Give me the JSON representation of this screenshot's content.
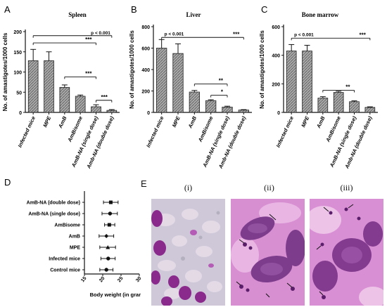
{
  "chart_data": [
    {
      "panel": "A",
      "type": "bar",
      "title": "Spleen",
      "ylabel": "No. of amastigotes/1000 cells",
      "xlabel": "",
      "ylim": [
        0,
        200
      ],
      "yticks": [
        0,
        50,
        100,
        150,
        200
      ],
      "categories": [
        "Infected mice",
        "MPE",
        "AmB",
        "AmBisome",
        "AmB-NA (single dose)",
        "Amb-NA (double dose)"
      ],
      "values": [
        128,
        128,
        62,
        40,
        14,
        5
      ],
      "errors": [
        28,
        22,
        6,
        3,
        5,
        2
      ],
      "annotations": [
        {
          "from": 0,
          "to": 5,
          "level": 190,
          "text": "p < 0.001"
        },
        {
          "from": 0,
          "to": 4,
          "level": 172,
          "text": "***"
        },
        {
          "from": 2,
          "to": 4,
          "level": 88,
          "text": "***"
        },
        {
          "from": 4,
          "to": 5,
          "level": 30,
          "text": "***"
        }
      ]
    },
    {
      "panel": "B",
      "type": "bar",
      "title": "Liver",
      "ylabel": "No. of amastigotes/1000 cells",
      "xlabel": "",
      "ylim": [
        0,
        800
      ],
      "yticks": [
        0,
        200,
        400,
        600,
        800
      ],
      "categories": [
        "Infected mice",
        "MPE",
        "AmB",
        "AmBisome",
        "AmB-NA (single dose)",
        "Amb-NA (double dose)"
      ],
      "values": [
        600,
        550,
        190,
        110,
        50,
        22
      ],
      "errors": [
        80,
        90,
        15,
        8,
        8,
        4
      ],
      "annotations": [
        {
          "from": 0,
          "to": 5,
          "level": 700,
          "text": "***",
          "note": "p < 0.001"
        },
        {
          "from": 2,
          "to": 4,
          "level": 265,
          "text": "**"
        },
        {
          "from": 3,
          "to": 4,
          "level": 160,
          "text": "*"
        }
      ]
    },
    {
      "panel": "C",
      "type": "bar",
      "title": "Bone marrow",
      "ylabel": "No. of amastigotes/1000 cells",
      "xlabel": "",
      "ylim": [
        0,
        600
      ],
      "yticks": [
        0,
        200,
        400,
        600
      ],
      "categories": [
        "Infected mice",
        "MPE",
        "AmB",
        "AmBisome",
        "AmB-NA (single dose)",
        "Amb-NA (double dose)"
      ],
      "values": [
        430,
        430,
        100,
        140,
        75,
        35
      ],
      "errors": [
        45,
        40,
        10,
        8,
        6,
        4
      ],
      "annotations": [
        {
          "from": 0,
          "to": 5,
          "level": 520,
          "text": "***",
          "note": "p < 0.001"
        },
        {
          "from": 2,
          "to": 4,
          "level": 155,
          "text": "**"
        }
      ]
    },
    {
      "panel": "D",
      "type": "scatter",
      "title": "",
      "xlabel": "Body weight (in gram)",
      "ylabel": "",
      "xlim": [
        15,
        30
      ],
      "xticks": [
        15,
        20,
        25,
        30
      ],
      "categories": [
        "AmB-NA (double dose)",
        "AmB-NA (single dose)",
        "AmBisome",
        "AmB",
        "MPE",
        "Infected mice",
        "Control mice"
      ],
      "means": [
        22.2,
        22.0,
        21.8,
        21.0,
        21.4,
        21.5,
        21.0
      ],
      "low": [
        20.2,
        19.8,
        20.5,
        19.0,
        19.2,
        19.5,
        19.2
      ],
      "high": [
        24.2,
        24.0,
        23.3,
        23.0,
        23.5,
        23.4,
        22.8
      ]
    }
  ],
  "panels": {
    "a": "A",
    "b": "B",
    "c": "C",
    "d": "D",
    "e": "E"
  },
  "micrographs": {
    "labels": [
      "(i)",
      "(ii)",
      "(iii)"
    ]
  },
  "colors": {
    "bar_fill": "#a9a9a9",
    "stain_purple": "#7a2a8a",
    "stain_pink": "#d98fd4",
    "axis": "#111111"
  }
}
